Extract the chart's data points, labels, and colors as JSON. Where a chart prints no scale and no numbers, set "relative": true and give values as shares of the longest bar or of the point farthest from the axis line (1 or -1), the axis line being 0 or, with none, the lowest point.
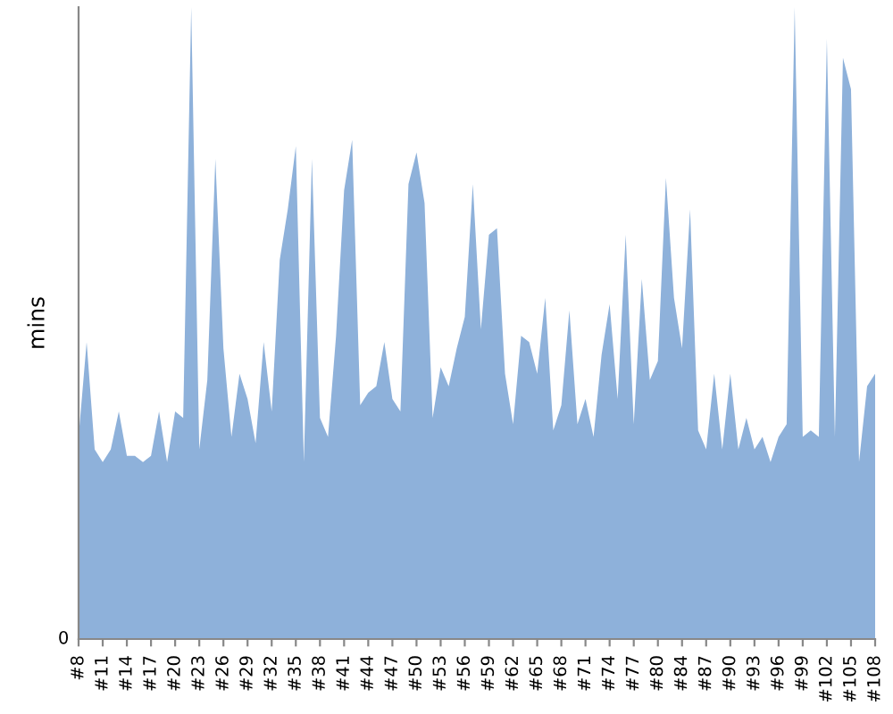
{
  "chart_data": {
    "type": "area",
    "relative": true,
    "ylabel": "mins",
    "annotations": [
      "0"
    ],
    "color": "#8eb1da",
    "grid": false,
    "legend": false,
    "categories": [
      "#8",
      null,
      null,
      "#11",
      null,
      null,
      "#14",
      null,
      null,
      "#17",
      null,
      null,
      "#20",
      null,
      null,
      "#23",
      null,
      null,
      "#26",
      null,
      null,
      "#29",
      null,
      null,
      "#32",
      null,
      null,
      "#35",
      null,
      null,
      "#38",
      null,
      null,
      "#41",
      null,
      null,
      "#44",
      null,
      null,
      "#47",
      null,
      null,
      "#50",
      null,
      null,
      "#53",
      null,
      null,
      "#56",
      null,
      null,
      "#59",
      null,
      null,
      "#62",
      null,
      null,
      "#65",
      null,
      null,
      "#68",
      null,
      null,
      "#71",
      null,
      null,
      "#74",
      null,
      null,
      "#77",
      null,
      null,
      "#80",
      null,
      null,
      "#84",
      null,
      null,
      "#87",
      null,
      null,
      "#90",
      null,
      null,
      "#93",
      null,
      null,
      "#96",
      null,
      null,
      "#99",
      null,
      null,
      "#102",
      null,
      null,
      "#105",
      null,
      null,
      "#108"
    ],
    "values": [
      0.32,
      0.47,
      0.3,
      0.28,
      0.3,
      0.36,
      0.29,
      0.29,
      0.28,
      0.29,
      0.36,
      0.28,
      0.36,
      0.35,
      1,
      0.3,
      0.41,
      0.76,
      0.46,
      0.32,
      0.42,
      0.38,
      0.31,
      0.47,
      0.36,
      0.6,
      0.68,
      0.78,
      0.28,
      0.76,
      0.35,
      0.32,
      0.48,
      0.71,
      0.79,
      0.37,
      0.39,
      0.4,
      0.47,
      0.38,
      0.36,
      0.72,
      0.77,
      0.69,
      0.35,
      0.43,
      0.4,
      0.46,
      0.51,
      0.72,
      0.49,
      0.64,
      0.65,
      0.42,
      0.34,
      0.48,
      0.47,
      0.42,
      0.54,
      0.33,
      0.37,
      0.52,
      0.34,
      0.38,
      0.32,
      0.45,
      0.53,
      0.38,
      0.64,
      0.34,
      0.57,
      0.41,
      0.44,
      0.73,
      0.54,
      0.46,
      0.68,
      0.33,
      0.3,
      0.42,
      0.3,
      0.42,
      0.3,
      0.35,
      0.3,
      0.32,
      0.28,
      0.32,
      0.34,
      1,
      0.32,
      0.33,
      0.32,
      0.95,
      0.32,
      0.92,
      0.87,
      0.28,
      0.4,
      0.42
    ]
  }
}
